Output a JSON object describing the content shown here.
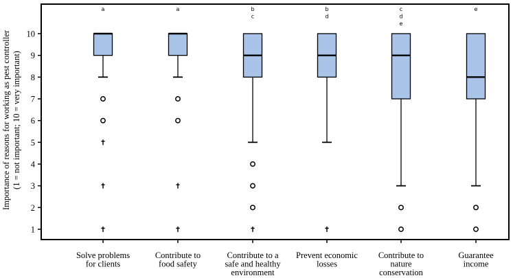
{
  "chart_data": {
    "type": "boxplot",
    "ylabel_line1": "Importance of reasons for working as pest controller",
    "ylabel_line2": "(1 = not important; 10 = very important)",
    "ylim": [
      0.5,
      10.8
    ],
    "yticks": [
      1,
      2,
      3,
      4,
      5,
      6,
      7,
      8,
      9,
      10
    ],
    "grid": false,
    "colors": {
      "box_fill": "#a9c4e8",
      "stroke": "#000000"
    },
    "categories": [
      {
        "label_lines": [
          "Solve problems",
          "for clients"
        ],
        "letters": [
          "a"
        ],
        "q1": 9,
        "median": 10,
        "q3": 10,
        "whisker_low": 8,
        "whisker_high": 10,
        "outliers": [
          7,
          6
        ],
        "extremes": [
          5,
          3,
          1
        ]
      },
      {
        "label_lines": [
          "Contribute to",
          "food safety"
        ],
        "letters": [
          "a"
        ],
        "q1": 9,
        "median": 10,
        "q3": 10,
        "whisker_low": 8,
        "whisker_high": 10,
        "outliers": [
          7,
          6
        ],
        "extremes": [
          3,
          1
        ]
      },
      {
        "label_lines": [
          "Contribute to a",
          "safe and healthy",
          "environment"
        ],
        "letters": [
          "b",
          "c"
        ],
        "q1": 8,
        "median": 9,
        "q3": 10,
        "whisker_low": 5,
        "whisker_high": 10,
        "outliers": [
          4,
          3,
          2
        ],
        "extremes": [
          1
        ]
      },
      {
        "label_lines": [
          "Prevent economic",
          "losses"
        ],
        "letters": [
          "b",
          "d"
        ],
        "q1": 8,
        "median": 9,
        "q3": 10,
        "whisker_low": 5,
        "whisker_high": 10,
        "outliers": [],
        "extremes": [
          1
        ]
      },
      {
        "label_lines": [
          "Contribute to",
          "nature",
          "conservation"
        ],
        "letters": [
          "c",
          "d",
          "e"
        ],
        "q1": 7,
        "median": 9,
        "q3": 10,
        "whisker_low": 3,
        "whisker_high": 10,
        "outliers": [
          2,
          1
        ],
        "extremes": []
      },
      {
        "label_lines": [
          "Guarantee",
          "income"
        ],
        "letters": [
          "e"
        ],
        "q1": 7,
        "median": 8,
        "q3": 10,
        "whisker_low": 3,
        "whisker_high": 10,
        "outliers": [
          2,
          1
        ],
        "extremes": []
      }
    ]
  }
}
